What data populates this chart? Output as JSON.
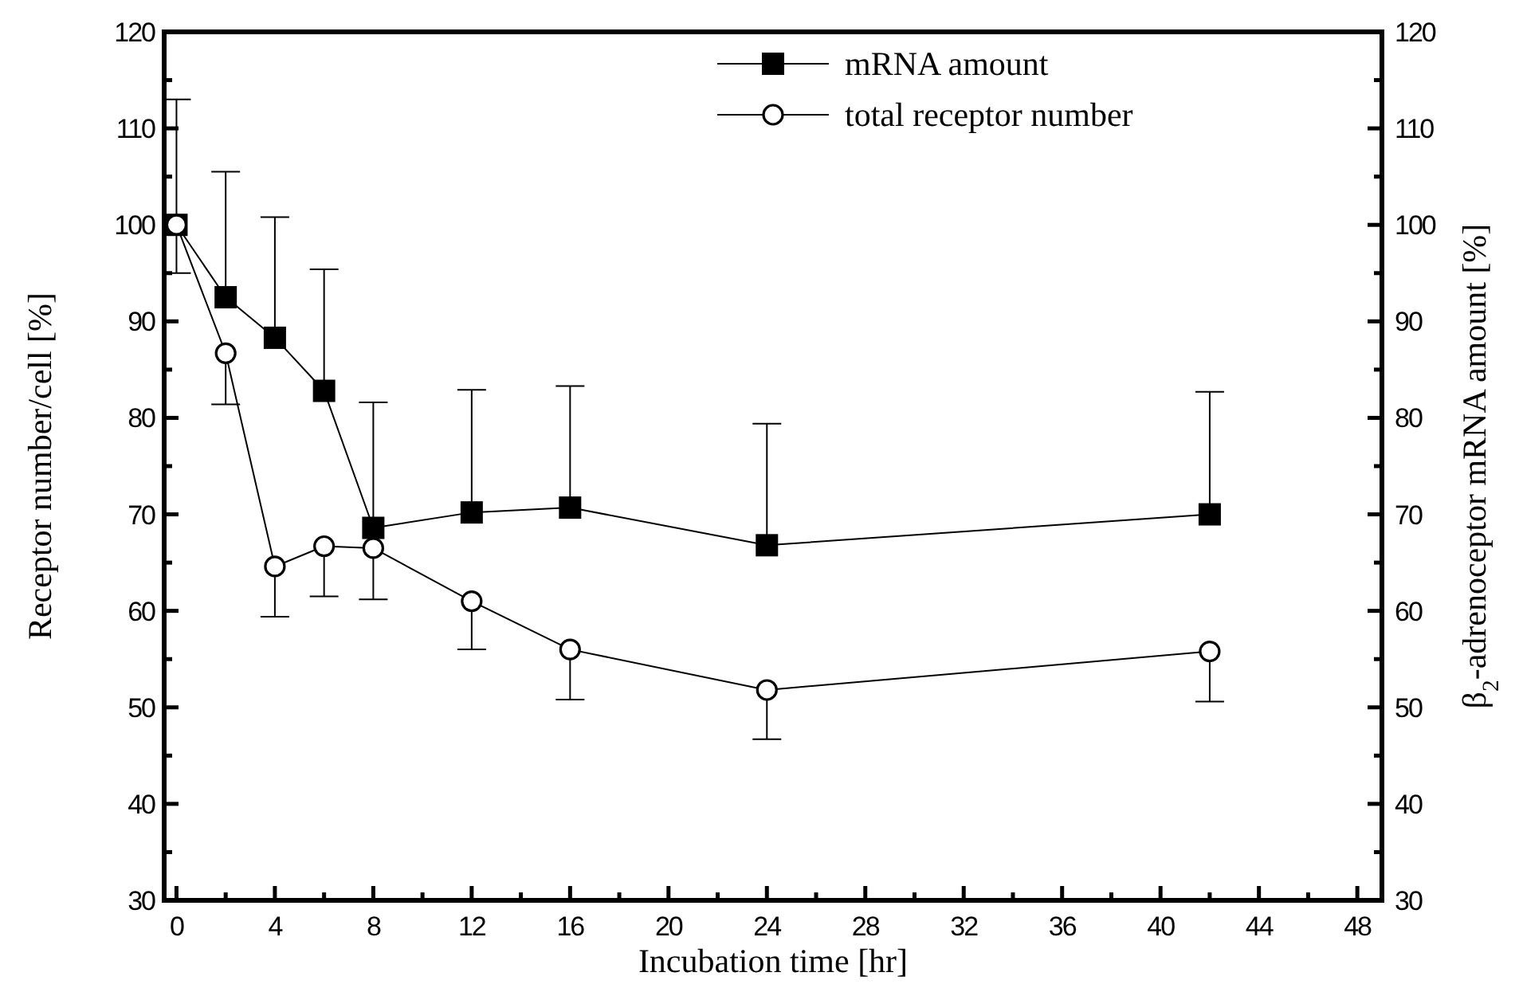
{
  "chart_data": {
    "type": "line",
    "xlabel": "Incubation time [hr]",
    "ylabel": "Receptor number/cell [%]",
    "y2label": "β$_{2}$-adrenoceptor mRNA amount [%]",
    "x": [
      0,
      2,
      4,
      6,
      8,
      12,
      16,
      24,
      42
    ],
    "series": [
      {
        "name": "mRNA amount",
        "color": "#000000",
        "marker": "square",
        "axis": "y2",
        "values": [
          100,
          92.5,
          88.3,
          82.8,
          68.6,
          70.2,
          70.7,
          66.8,
          70
        ],
        "errors": [
          [
            100,
            113
          ],
          [
            92.5,
            105.5
          ],
          [
            88.3,
            100.8
          ],
          [
            82.8,
            95.4
          ],
          [
            68.6,
            81.6
          ],
          [
            70.2,
            82.9
          ],
          [
            70.7,
            83.3
          ],
          [
            66.8,
            79.4
          ],
          [
            70,
            82.7
          ]
        ]
      },
      {
        "name": "total receptor number",
        "color": "#000000",
        "marker": "circle",
        "values": [
          100,
          86.7,
          64.6,
          66.7,
          66.5,
          61,
          56,
          51.8,
          55.8
        ],
        "errors": [
          [
            95,
            100
          ],
          [
            81.4,
            86.7
          ],
          [
            59.4,
            64.6
          ],
          [
            61.5,
            66.7
          ],
          [
            61.2,
            66.5
          ],
          [
            56,
            61
          ],
          [
            50.8,
            56
          ],
          [
            46.7,
            51.8
          ],
          [
            50.6,
            55.8
          ]
        ]
      }
    ],
    "xlim": [
      -0.5,
      49
    ],
    "xticks": [
      0,
      {
        "value": 2,
        "label": null
      },
      4,
      {
        "value": 6,
        "label": null
      },
      8,
      {
        "value": 10,
        "label": null
      },
      12,
      {
        "value": 14,
        "label": null
      },
      16,
      {
        "value": 18,
        "label": null
      },
      20,
      {
        "value": 22,
        "label": null
      },
      24,
      {
        "value": 26,
        "label": null
      },
      28,
      {
        "value": 30,
        "label": null
      },
      32,
      {
        "value": 34,
        "label": null
      },
      36,
      {
        "value": 38,
        "label": null
      },
      40,
      {
        "value": 42,
        "label": null
      },
      44,
      {
        "value": 46,
        "label": null
      },
      48
    ],
    "ylim": [
      30,
      120
    ],
    "yticks": [
      30,
      {
        "value": 35,
        "label": null
      },
      40,
      {
        "value": 45,
        "label": null
      },
      50,
      {
        "value": 55,
        "label": null
      },
      60,
      {
        "value": 65,
        "label": null
      },
      70,
      {
        "value": 75,
        "label": null
      },
      80,
      {
        "value": 85,
        "label": null
      },
      90,
      {
        "value": 95,
        "label": null
      },
      100,
      {
        "value": 105,
        "label": null
      },
      110,
      {
        "value": 115,
        "label": null
      },
      120
    ],
    "y2lim": [
      30,
      120
    ],
    "y2ticks": [
      30,
      {
        "value": 35,
        "label": null
      },
      40,
      {
        "value": 45,
        "label": null
      },
      50,
      {
        "value": 55,
        "label": null
      },
      60,
      {
        "value": 65,
        "label": null
      },
      70,
      {
        "value": 75,
        "label": null
      },
      80,
      {
        "value": 85,
        "label": null
      },
      90,
      {
        "value": 95,
        "label": null
      },
      100,
      {
        "value": 105,
        "label": null
      },
      110,
      {
        "value": 115,
        "label": null
      },
      120
    ],
    "grid": false,
    "legend": "top right",
    "line_style": "solid"
  }
}
